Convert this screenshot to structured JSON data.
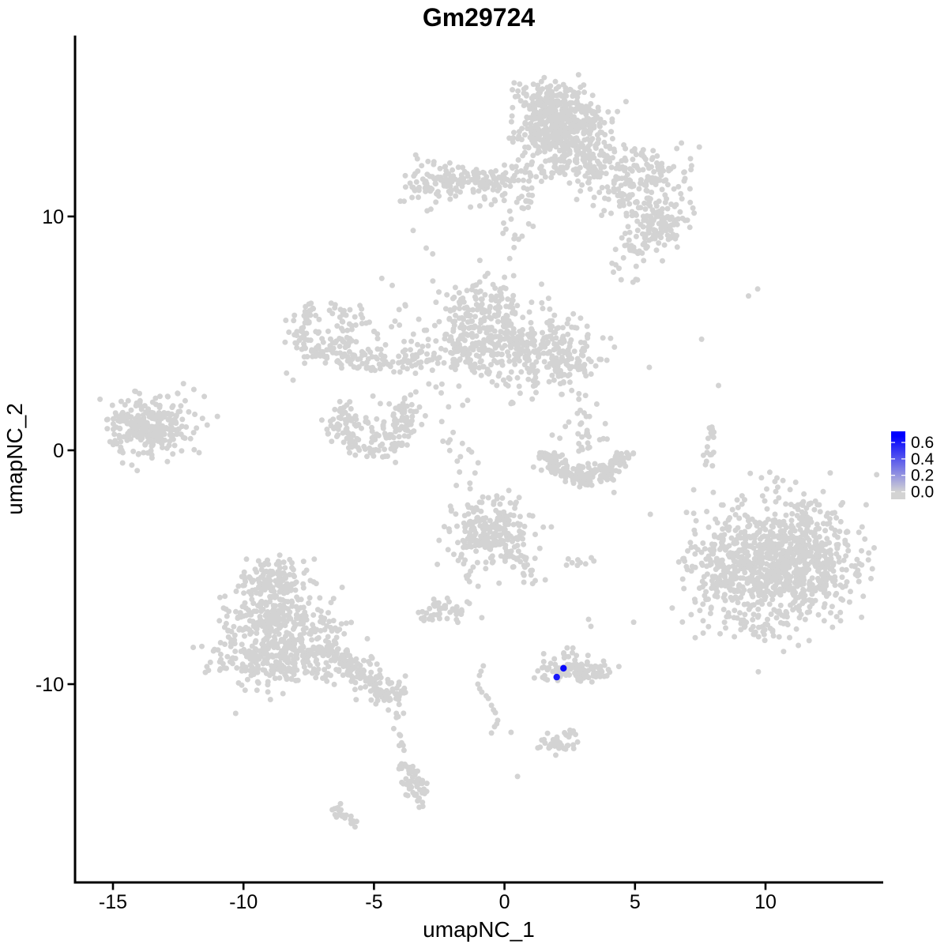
{
  "chart_data": {
    "type": "scatter",
    "title": "Gm29724",
    "xlabel": "umapNC_1",
    "ylabel": "umapNC_2",
    "x_ticks": [
      -15,
      -10,
      -5,
      0,
      5,
      10
    ],
    "y_ticks": [
      10,
      0,
      -10
    ],
    "xlim": [
      -16.5,
      14.5
    ],
    "ylim": [
      -18.5,
      17.7
    ],
    "grid": false,
    "point_color_low": "#D3D3D3",
    "point_color_high": "#0000FF",
    "axis_color": "#000000",
    "legend": {
      "position": "right",
      "ticks": [
        0.6,
        0.4,
        0.2,
        0.0
      ],
      "vmin": 0.0,
      "vmax": 0.68
    },
    "highlighted_cells": [
      {
        "x": 2.26,
        "y": -9.32,
        "value": 0.65
      },
      {
        "x": 2.0,
        "y": -9.7,
        "value": 0.6
      }
    ],
    "background_expression_value": 0.0,
    "clusters": [
      {
        "kind": "gauss",
        "cx": 1.95,
        "cy": 14.1,
        "sx": 0.78,
        "sy": 0.68,
        "n": 430
      },
      {
        "kind": "gauss",
        "cx": 1.3,
        "cy": 15.1,
        "sx": 0.55,
        "sy": 0.3,
        "n": 40
      },
      {
        "kind": "gauss",
        "cx": 3.3,
        "cy": 14.0,
        "sx": 0.5,
        "sy": 0.55,
        "n": 35
      },
      {
        "kind": "gauss",
        "cx": 2.6,
        "cy": 12.6,
        "sx": 0.9,
        "sy": 0.5,
        "n": 110
      },
      {
        "kind": "line",
        "x1": 3.0,
        "y1": 12.6,
        "x2": 6.3,
        "y2": 9.7,
        "w": 0.7,
        "n": 210
      },
      {
        "kind": "gauss",
        "cx": 5.5,
        "cy": 12.0,
        "sx": 0.5,
        "sy": 0.45,
        "n": 55
      },
      {
        "kind": "gauss",
        "cx": 5.95,
        "cy": 9.6,
        "sx": 0.5,
        "sy": 0.45,
        "n": 60
      },
      {
        "kind": "gauss",
        "cx": 4.9,
        "cy": 8.7,
        "sx": 0.35,
        "sy": 0.28,
        "n": 22
      },
      {
        "kind": "gauss",
        "cx": 6.8,
        "cy": 11.7,
        "sx": 0.45,
        "sy": 0.7,
        "n": 14
      },
      {
        "kind": "line",
        "x1": 4.0,
        "y1": 8.3,
        "x2": 4.8,
        "y2": 7.2,
        "w": 0.22,
        "n": 8
      },
      {
        "kind": "line",
        "x1": 1.0,
        "y1": 12.2,
        "x2": 0.35,
        "y2": 9.0,
        "w": 0.3,
        "n": 34
      },
      {
        "kind": "points",
        "pts": [
          [
            0.2,
            8.2
          ],
          [
            0.0,
            7.4
          ],
          [
            -0.15,
            6.9
          ],
          [
            6.05,
            8.1
          ]
        ]
      },
      {
        "kind": "gauss",
        "cx": -2.55,
        "cy": 11.35,
        "sx": 0.75,
        "sy": 0.45,
        "n": 95
      },
      {
        "kind": "gauss",
        "cx": -0.8,
        "cy": 11.45,
        "sx": 0.55,
        "sy": 0.45,
        "n": 70
      },
      {
        "kind": "line",
        "x1": -0.4,
        "y1": 11.6,
        "x2": 0.7,
        "y2": 12.1,
        "w": 0.3,
        "n": 26
      },
      {
        "kind": "points",
        "pts": [
          [
            -3.5,
            9.4
          ],
          [
            -3.0,
            8.65
          ],
          [
            -2.75,
            8.4
          ],
          [
            -4.7,
            7.35
          ],
          [
            -4.3,
            7.05
          ]
        ]
      },
      {
        "kind": "ring",
        "cx": -6.9,
        "cy": 5.1,
        "r": 1.0,
        "sr": 0.3,
        "a1": 110,
        "a2": 440,
        "n": 135
      },
      {
        "kind": "line",
        "x1": -6.1,
        "y1": 4.0,
        "x2": -4.5,
        "y2": 3.6,
        "w": 0.3,
        "n": 45
      },
      {
        "kind": "line",
        "x1": -4.3,
        "y1": 3.75,
        "x2": -2.6,
        "y2": 3.9,
        "w": 0.25,
        "n": 40
      },
      {
        "kind": "gauss",
        "cx": -3.6,
        "cy": 5.3,
        "sx": 0.55,
        "sy": 0.65,
        "n": 12
      },
      {
        "kind": "line",
        "x1": -5.65,
        "y1": 6.1,
        "x2": -4.95,
        "y2": 4.9,
        "w": 0.13,
        "n": 11
      },
      {
        "kind": "points",
        "pts": [
          [
            -8.35,
            3.3
          ],
          [
            -8.1,
            3.0
          ]
        ]
      },
      {
        "kind": "gauss",
        "cx": -0.9,
        "cy": 4.9,
        "sx": 1.0,
        "sy": 1.0,
        "n": 310
      },
      {
        "kind": "gauss",
        "cx": -0.4,
        "cy": 6.3,
        "sx": 0.5,
        "sy": 0.4,
        "n": 45
      },
      {
        "kind": "gauss",
        "cx": 1.9,
        "cy": 4.1,
        "sx": 0.95,
        "sy": 0.8,
        "n": 210
      },
      {
        "kind": "line",
        "x1": 0.2,
        "y1": 4.4,
        "x2": 1.0,
        "y2": 4.1,
        "w": 0.3,
        "n": 28
      },
      {
        "kind": "ring",
        "cx": -5.0,
        "cy": 1.3,
        "r": 1.3,
        "sr": 0.28,
        "a1": 140,
        "a2": 400,
        "n": 150
      },
      {
        "kind": "gauss",
        "cx": -5.0,
        "cy": 0.9,
        "sx": 0.75,
        "sy": 0.45,
        "n": 40
      },
      {
        "kind": "line",
        "x1": -2.7,
        "y1": 3.1,
        "x2": -1.0,
        "y2": -1.6,
        "w": 0.3,
        "n": 20
      },
      {
        "kind": "gauss",
        "cx": -13.65,
        "cy": 1.05,
        "sx": 0.75,
        "sy": 0.62,
        "n": 290
      },
      {
        "kind": "points",
        "pts": [
          [
            -12.3,
            2.85
          ],
          [
            -11.9,
            2.6
          ],
          [
            -11.5,
            2.3
          ],
          [
            -11.0,
            1.45
          ],
          [
            -11.8,
            0.95
          ],
          [
            -11.7,
            -0.1
          ],
          [
            -12.4,
            1.9
          ]
        ]
      },
      {
        "kind": "ring",
        "cx": 3.05,
        "cy": -0.1,
        "r": 1.5,
        "sr": 0.26,
        "a1": 180,
        "a2": 360,
        "n": 150,
        "ys": 0.62
      },
      {
        "kind": "gauss",
        "cx": 3.1,
        "cy": -1.05,
        "sx": 0.8,
        "sy": 0.25,
        "n": 55
      },
      {
        "kind": "gauss",
        "cx": 2.95,
        "cy": 0.6,
        "sx": 0.55,
        "sy": 0.6,
        "n": 24
      },
      {
        "kind": "gauss",
        "cx": 2.7,
        "cy": 2.0,
        "sx": 0.35,
        "sy": 0.6,
        "n": 10
      },
      {
        "kind": "points",
        "pts": [
          [
            1.9,
            3.0
          ],
          [
            8.2,
            2.77
          ]
        ]
      },
      {
        "kind": "line",
        "x1": 8.05,
        "y1": 1.1,
        "x2": 7.75,
        "y2": -0.55,
        "w": 0.12,
        "n": 20
      },
      {
        "kind": "points",
        "pts": [
          [
            8.0,
            -1.8
          ],
          [
            7.25,
            -1.69
          ],
          [
            7.55,
            4.75
          ],
          [
            9.35,
            6.6
          ],
          [
            9.7,
            6.9
          ]
        ]
      },
      {
        "kind": "gauss",
        "cx": 10.55,
        "cy": -4.8,
        "sx": 1.5,
        "sy": 1.32,
        "n": 980
      },
      {
        "kind": "gauss",
        "cx": 8.25,
        "cy": -5.0,
        "sx": 0.45,
        "sy": 0.75,
        "n": 65
      },
      {
        "kind": "gauss",
        "cx": 9.7,
        "cy": -7.4,
        "sx": 0.6,
        "sy": 0.3,
        "n": 22
      },
      {
        "kind": "gauss",
        "cx": -8.8,
        "cy": -5.6,
        "sx": 0.62,
        "sy": 0.5,
        "n": 150
      },
      {
        "kind": "gauss",
        "cx": -8.75,
        "cy": -7.2,
        "sx": 1.05,
        "sy": 0.6,
        "n": 230
      },
      {
        "kind": "gauss",
        "cx": -8.7,
        "cy": -8.9,
        "sx": 1.25,
        "sy": 0.62,
        "n": 280
      },
      {
        "kind": "line",
        "x1": -7.2,
        "y1": -8.2,
        "x2": -4.4,
        "y2": -10.3,
        "w": 0.38,
        "n": 160
      },
      {
        "kind": "gauss",
        "cx": -4.4,
        "cy": -10.3,
        "sx": 0.38,
        "sy": 0.35,
        "n": 40
      },
      {
        "kind": "line",
        "x1": -4.15,
        "y1": -11.1,
        "x2": -3.85,
        "y2": -13.1,
        "w": 0.1,
        "n": 11
      },
      {
        "kind": "line",
        "x1": -3.95,
        "y1": -13.3,
        "x2": -3.2,
        "y2": -14.9,
        "w": 0.22,
        "n": 38
      },
      {
        "kind": "gauss",
        "cx": -3.45,
        "cy": -14.55,
        "sx": 0.28,
        "sy": 0.28,
        "n": 14
      },
      {
        "kind": "line",
        "x1": -6.45,
        "y1": -15.3,
        "x2": -5.75,
        "y2": -15.95,
        "w": 0.16,
        "n": 24
      },
      {
        "kind": "points",
        "pts": [
          [
            -10.3,
            -11.25
          ]
        ]
      },
      {
        "kind": "gauss",
        "cx": -0.5,
        "cy": -3.45,
        "sx": 0.82,
        "sy": 0.78,
        "n": 240
      },
      {
        "kind": "line",
        "x1": 0.55,
        "y1": -4.4,
        "x2": 1.1,
        "y2": -5.6,
        "w": 0.18,
        "n": 20
      },
      {
        "kind": "line",
        "x1": -1.45,
        "y1": -4.7,
        "x2": -1.3,
        "y2": -6.05,
        "w": 0.1,
        "n": 7
      },
      {
        "kind": "line",
        "x1": 2.4,
        "y1": -4.75,
        "x2": 3.35,
        "y2": -4.65,
        "w": 0.12,
        "n": 9
      },
      {
        "kind": "gauss",
        "cx": -2.3,
        "cy": -6.85,
        "sx": 0.42,
        "sy": 0.28,
        "n": 42
      },
      {
        "kind": "points",
        "pts": [
          [
            -0.87,
            -7.16
          ],
          [
            3.22,
            -7.23
          ],
          [
            3.31,
            -7.53
          ],
          [
            4.95,
            -7.35
          ]
        ]
      },
      {
        "kind": "gauss",
        "cx": 2.7,
        "cy": -9.55,
        "sx": 0.72,
        "sy": 0.22,
        "n": 85
      },
      {
        "kind": "line",
        "x1": 1.7,
        "y1": -9.15,
        "x2": 3.9,
        "y2": -9.4,
        "w": 0.18,
        "n": 25
      },
      {
        "kind": "gauss",
        "cx": 2.55,
        "cy": -8.8,
        "sx": 0.45,
        "sy": 0.18,
        "n": 10
      },
      {
        "kind": "points",
        "pts": [
          [
            2.4,
            -8.45
          ],
          [
            1.5,
            -8.7
          ],
          [
            1.45,
            -9.3
          ]
        ]
      },
      {
        "kind": "gauss",
        "cx": 2.0,
        "cy": -12.6,
        "sx": 0.42,
        "sy": 0.22,
        "n": 35
      },
      {
        "kind": "line",
        "x1": 2.3,
        "y1": -12.25,
        "x2": 2.75,
        "y2": -12.1,
        "w": 0.1,
        "n": 6
      },
      {
        "kind": "points",
        "pts": [
          [
            1.65,
            -12.1
          ],
          [
            0.5,
            -13.95
          ],
          [
            0.25,
            -12.06
          ]
        ]
      },
      {
        "kind": "points",
        "pts": [
          [
            -0.81,
            -9.22
          ],
          [
            -0.9,
            -9.45
          ],
          [
            -0.96,
            -9.63
          ],
          [
            -1.02,
            -10.0
          ],
          [
            -0.95,
            -10.2
          ],
          [
            -0.87,
            -10.34
          ],
          [
            -0.7,
            -10.5
          ],
          [
            -0.62,
            -10.61
          ],
          [
            -0.5,
            -10.91
          ],
          [
            -0.42,
            -11.1
          ],
          [
            -0.35,
            -11.22
          ],
          [
            -0.26,
            -11.55
          ],
          [
            -0.3,
            -11.7
          ],
          [
            -0.38,
            -11.82
          ],
          [
            -0.5,
            -12.09
          ]
        ]
      }
    ]
  }
}
